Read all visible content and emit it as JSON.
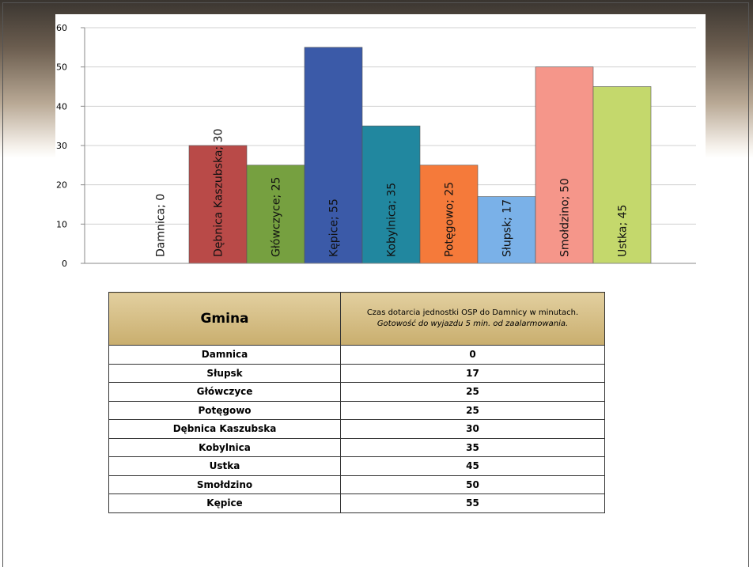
{
  "chart_data": {
    "type": "bar",
    "categories": [
      "Damnica",
      "Dębnica Kaszubska",
      "Główczyce",
      "Kępice",
      "Kobylnica",
      "Potęgowo",
      "Słupsk",
      "Smołdzino",
      "Ustka"
    ],
    "values": [
      0,
      30,
      25,
      55,
      35,
      25,
      17,
      50,
      45
    ],
    "value_labels": [
      "Damnica; 0",
      "Dębnica Kaszubska; 30",
      "Główczyce; 25",
      "Kępice; 55",
      "Kobylnica; 35",
      "Potęgowo; 25",
      "Słupsk; 17",
      "Smołdzino; 50",
      "Ustka; 45"
    ],
    "colors": [
      "#ffffff",
      "#b94a48",
      "#76a040",
      "#3b5aa8",
      "#21879f",
      "#f57a3a",
      "#7ab1e8",
      "#f5968a",
      "#c4d86c"
    ],
    "ylim": [
      0,
      60
    ],
    "yticks": [
      0,
      10,
      20,
      30,
      40,
      50,
      60
    ],
    "grid": true
  },
  "table": {
    "header": [
      "Gmina",
      "Czas dotarcia jednostki OSP do Damnicy w minutach."
    ],
    "header_note": "Gotowość do wyjazdu 5 min. od zaalarmowania.",
    "rows": [
      [
        "Damnica",
        0
      ],
      [
        "Słupsk",
        17
      ],
      [
        "Główczyce",
        25
      ],
      [
        "Potęgowo",
        25
      ],
      [
        "Dębnica Kaszubska",
        30
      ],
      [
        "Kobylnica",
        35
      ],
      [
        "Ustka",
        45
      ],
      [
        "Smołdzino",
        50
      ],
      [
        "Kępice",
        55
      ]
    ]
  }
}
